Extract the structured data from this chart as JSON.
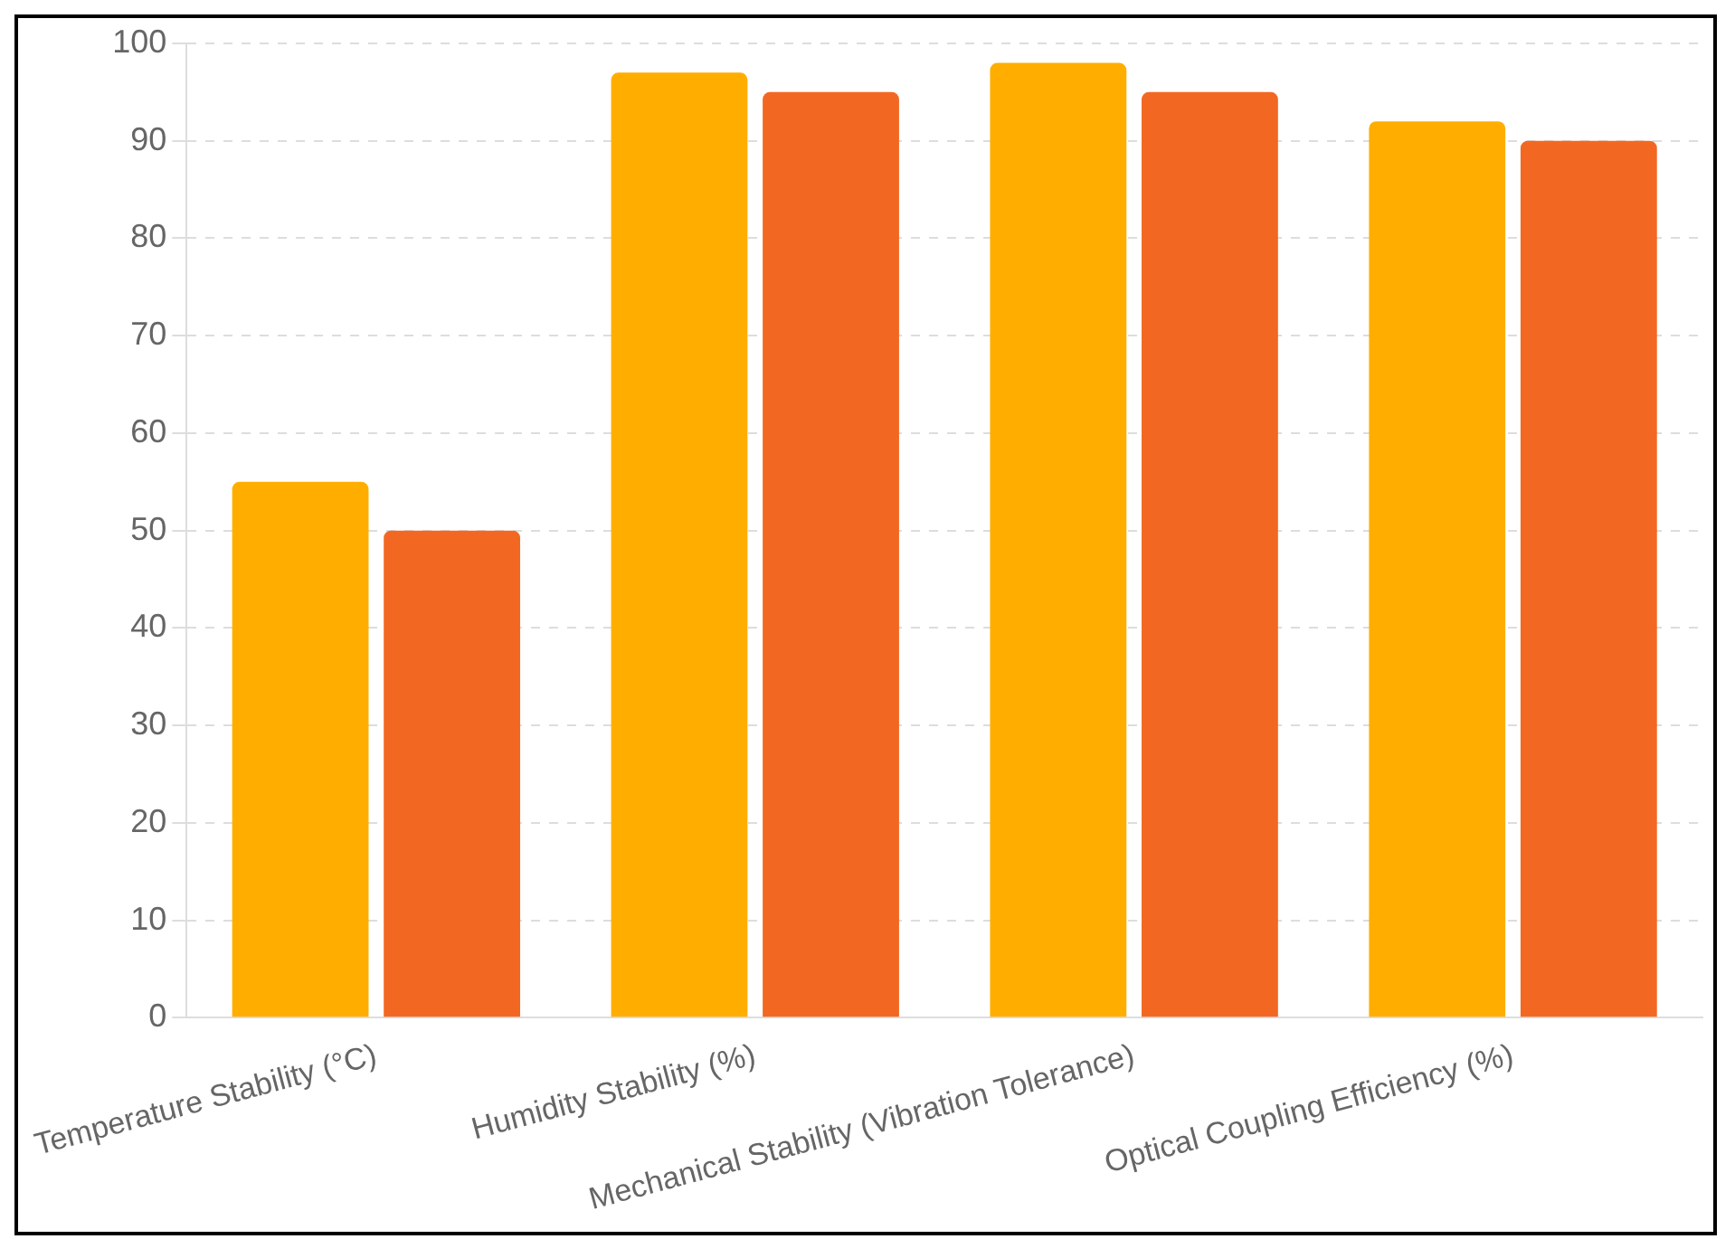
{
  "chart_data": {
    "type": "bar",
    "categories": [
      "Temperature Stability (°C)",
      "Humidity Stability (%)",
      "Mechanical Stability (Vibration Tolerance)",
      "Optical Coupling Efficiency (%)"
    ],
    "series": [
      {
        "color": "#ffae00",
        "values": [
          55,
          97,
          98,
          92
        ]
      },
      {
        "color": "#f26822",
        "values": [
          50,
          95,
          95,
          90
        ]
      }
    ],
    "ylim": [
      0,
      100
    ],
    "yticks": [
      0,
      10,
      20,
      30,
      40,
      50,
      60,
      70,
      80,
      90,
      100
    ],
    "grid": "y",
    "legend": false
  }
}
